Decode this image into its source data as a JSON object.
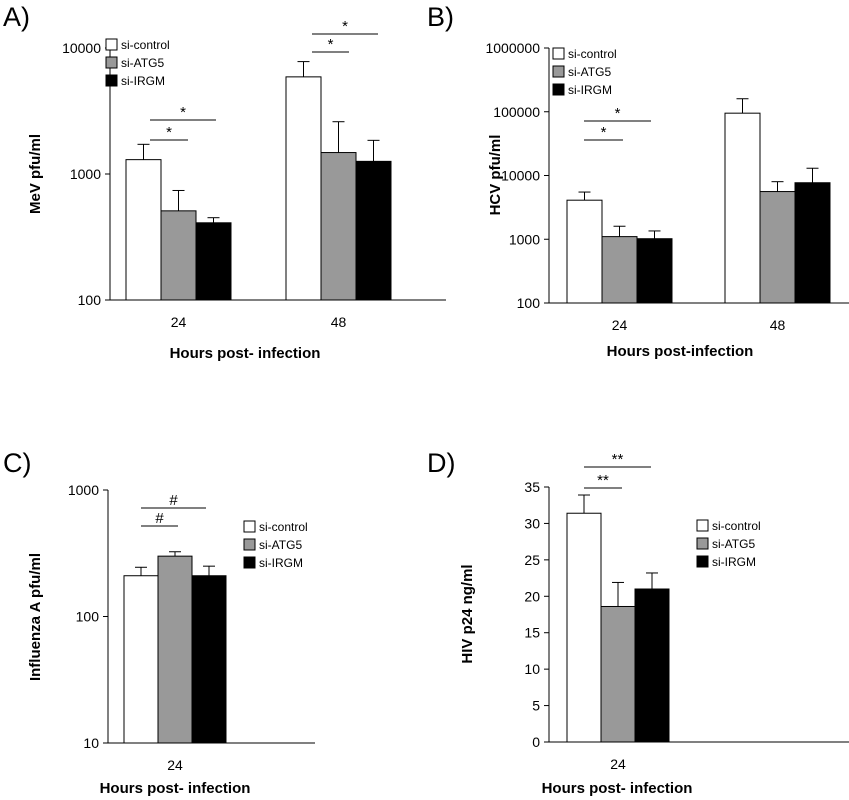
{
  "colors": {
    "si-control": "#ffffff",
    "si-ATG5": "#999999",
    "si-IRGM": "#000000"
  },
  "chart_data": [
    {
      "panel": "A)",
      "type": "bar",
      "yscale": "log",
      "ylim": [
        100,
        10000
      ],
      "yticks": [
        "100",
        "1000",
        "10000"
      ],
      "ylabel": "MeV pfu/ml",
      "xlabel": "Hours post- infection",
      "categories": [
        "24",
        "48"
      ],
      "series": [
        {
          "name": "si-control",
          "values": [
            1300,
            5900
          ],
          "errors": [
            1720,
            7800
          ]
        },
        {
          "name": "si-ATG5",
          "values": [
            510,
            1480
          ],
          "errors": [
            740,
            2600
          ]
        },
        {
          "name": "si-IRGM",
          "values": [
            410,
            1260
          ],
          "errors": [
            450,
            1850
          ]
        }
      ],
      "significance": [
        {
          "category": "24",
          "from": "si-control",
          "to": "si-ATG5",
          "label": "*"
        },
        {
          "category": "24",
          "from": "si-control",
          "to": "si-IRGM",
          "label": "*"
        },
        {
          "category": "48",
          "from": "si-control",
          "to": "si-ATG5",
          "label": "*"
        },
        {
          "category": "48",
          "from": "si-control",
          "to": "si-IRGM",
          "label": "*"
        }
      ],
      "legend": "top-left"
    },
    {
      "panel": "B)",
      "type": "bar",
      "yscale": "log",
      "ylim": [
        100,
        1000000
      ],
      "yticks": [
        "100",
        "1000",
        "10000",
        "100000",
        "1000000"
      ],
      "ylabel": "HCV pfu/ml",
      "xlabel": "Hours post-infection",
      "categories": [
        "24",
        "48"
      ],
      "series": [
        {
          "name": "si-control",
          "values": [
            4100,
            95000
          ],
          "errors": [
            5500,
            160000
          ]
        },
        {
          "name": "si-ATG5",
          "values": [
            1100,
            5600
          ],
          "errors": [
            1600,
            8000
          ]
        },
        {
          "name": "si-IRGM",
          "values": [
            1020,
            7700
          ],
          "errors": [
            1350,
            13000
          ]
        }
      ],
      "significance": [
        {
          "category": "24",
          "from": "si-control",
          "to": "si-ATG5",
          "label": "*"
        },
        {
          "category": "24",
          "from": "si-control",
          "to": "si-IRGM",
          "label": "*"
        }
      ],
      "legend": "top-left"
    },
    {
      "panel": "C)",
      "type": "bar",
      "yscale": "log",
      "ylim": [
        10,
        1000
      ],
      "yticks": [
        "10",
        "100",
        "1000"
      ],
      "ylabel": "Influenza A pfu/ml",
      "xlabel": "Hours post- infection",
      "categories": [
        "24"
      ],
      "series": [
        {
          "name": "si-control",
          "values": [
            210
          ],
          "errors": [
            245
          ]
        },
        {
          "name": "si-ATG5",
          "values": [
            300
          ],
          "errors": [
            325
          ]
        },
        {
          "name": "si-IRGM",
          "values": [
            210
          ],
          "errors": [
            250
          ]
        }
      ],
      "significance": [
        {
          "category": "24",
          "from": "si-control",
          "to": "si-ATG5",
          "label": "#"
        },
        {
          "category": "24",
          "from": "si-control",
          "to": "si-IRGM",
          "label": "#"
        }
      ],
      "legend": "right"
    },
    {
      "panel": "D)",
      "type": "bar",
      "yscale": "linear",
      "ylim": [
        0,
        35
      ],
      "yticks": [
        "0",
        "5",
        "10",
        "15",
        "20",
        "25",
        "30",
        "35"
      ],
      "ylabel": "HIV p24 ng/ml",
      "xlabel": "Hours post- infection",
      "categories": [
        "24"
      ],
      "series": [
        {
          "name": "si-control",
          "values": [
            31.4
          ],
          "errors": [
            33.9
          ]
        },
        {
          "name": "si-ATG5",
          "values": [
            18.6
          ],
          "errors": [
            21.9
          ]
        },
        {
          "name": "si-IRGM",
          "values": [
            21.0
          ],
          "errors": [
            23.2
          ]
        }
      ],
      "significance": [
        {
          "category": "24",
          "from": "si-control",
          "to": "si-ATG5",
          "label": "**"
        },
        {
          "category": "24",
          "from": "si-control",
          "to": "si-IRGM",
          "label": "**"
        }
      ],
      "legend": "right"
    }
  ]
}
